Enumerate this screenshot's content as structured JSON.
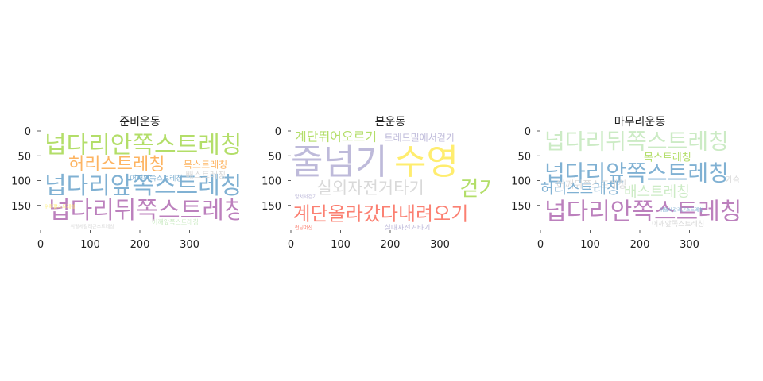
{
  "chart_data": [
    {
      "type": "wordcloud",
      "title": "준비운동",
      "x_ticks": [
        0,
        100,
        200,
        300
      ],
      "y_ticks": [
        0,
        50,
        100,
        150
      ],
      "xlim": [
        0,
        400
      ],
      "ylim": [
        200,
        0
      ],
      "words": [
        {
          "text": "넙다리안쪽스트레칭",
          "weight": 1.0,
          "color": "#b3de69"
        },
        {
          "text": "허리스트레칭",
          "weight": 0.75,
          "color": "#fdb462"
        },
        {
          "text": "넙다리앞쪽스트레칭",
          "weight": 1.0,
          "color": "#80b1d3"
        },
        {
          "text": "넙다리뒤쪽스트레칭",
          "weight": 1.0,
          "color": "#bc80bd"
        },
        {
          "text": "목스트레칭",
          "weight": 0.35,
          "color": "#fdb462"
        },
        {
          "text": "배스트레칭",
          "weight": 0.3,
          "color": "#d9d9d9"
        },
        {
          "text": "어깨뒤쪽스트레칭",
          "weight": 0.22,
          "color": "#80b1d3"
        },
        {
          "text": "어깨앞쪽스트레칭",
          "weight": 0.18,
          "color": "#ccebc5"
        },
        {
          "text": "위팔세갈래근스트레칭",
          "weight": 0.15,
          "color": "#d9d9d9"
        },
        {
          "text": "위쪽팔스트레칭",
          "weight": 0.15,
          "color": "#ffed6f"
        }
      ]
    },
    {
      "type": "wordcloud",
      "title": "본운동",
      "x_ticks": [
        0,
        100,
        200,
        300
      ],
      "y_ticks": [
        0,
        50,
        100,
        150
      ],
      "xlim": [
        0,
        400
      ],
      "ylim": [
        200,
        0
      ],
      "words": [
        {
          "text": "줄넘기",
          "weight": 1.0,
          "color": "#bebada"
        },
        {
          "text": "수영",
          "weight": 1.0,
          "color": "#ffed6f"
        },
        {
          "text": "걷기",
          "weight": 0.9,
          "color": "#b3de69"
        },
        {
          "text": "계단뛰어오르기",
          "weight": 0.5,
          "color": "#b3de69"
        },
        {
          "text": "트레드밀에서걷기",
          "weight": 0.4,
          "color": "#bebada"
        },
        {
          "text": "실외자전거타기",
          "weight": 0.75,
          "color": "#d9d9d9"
        },
        {
          "text": "계단올라갔다내려오기",
          "weight": 0.95,
          "color": "#fb8072"
        },
        {
          "text": "실내자전거타기",
          "weight": 0.25,
          "color": "#bebada"
        },
        {
          "text": "런닝머신",
          "weight": 0.15,
          "color": "#fb8072"
        },
        {
          "text": "앞서서걷기",
          "weight": 0.15,
          "color": "#bebada"
        }
      ]
    },
    {
      "type": "wordcloud",
      "title": "마무리운동",
      "x_ticks": [
        0,
        100,
        200,
        300
      ],
      "y_ticks": [
        0,
        50,
        100,
        150
      ],
      "xlim": [
        0,
        400
      ],
      "ylim": [
        200,
        0
      ],
      "words": [
        {
          "text": "넙다리뒤쪽스트레칭",
          "weight": 1.0,
          "color": "#ccebc5"
        },
        {
          "text": "목스트레칭",
          "weight": 0.4,
          "color": "#b3de69"
        },
        {
          "text": "넙다리앞쪽스트레칭",
          "weight": 1.0,
          "color": "#80b1d3"
        },
        {
          "text": "어깨뒤쪽스트레칭",
          "weight": 0.3,
          "color": "#d9d9d9"
        },
        {
          "text": "허리스트레칭",
          "weight": 0.6,
          "color": "#80b1d3"
        },
        {
          "text": "배스트레칭",
          "weight": 0.6,
          "color": "#ccebc5"
        },
        {
          "text": "넙다리안쪽스트레칭",
          "weight": 1.0,
          "color": "#bc80bd"
        },
        {
          "text": "어깨앞쪽스트레칭",
          "weight": 0.3,
          "color": "#d9d9d9"
        },
        {
          "text": "위팔세갈래근스트레칭",
          "weight": 0.15,
          "color": "#80b1d3"
        },
        {
          "text": "가슴",
          "weight": 0.2,
          "color": "#d9d9d9"
        }
      ]
    }
  ]
}
